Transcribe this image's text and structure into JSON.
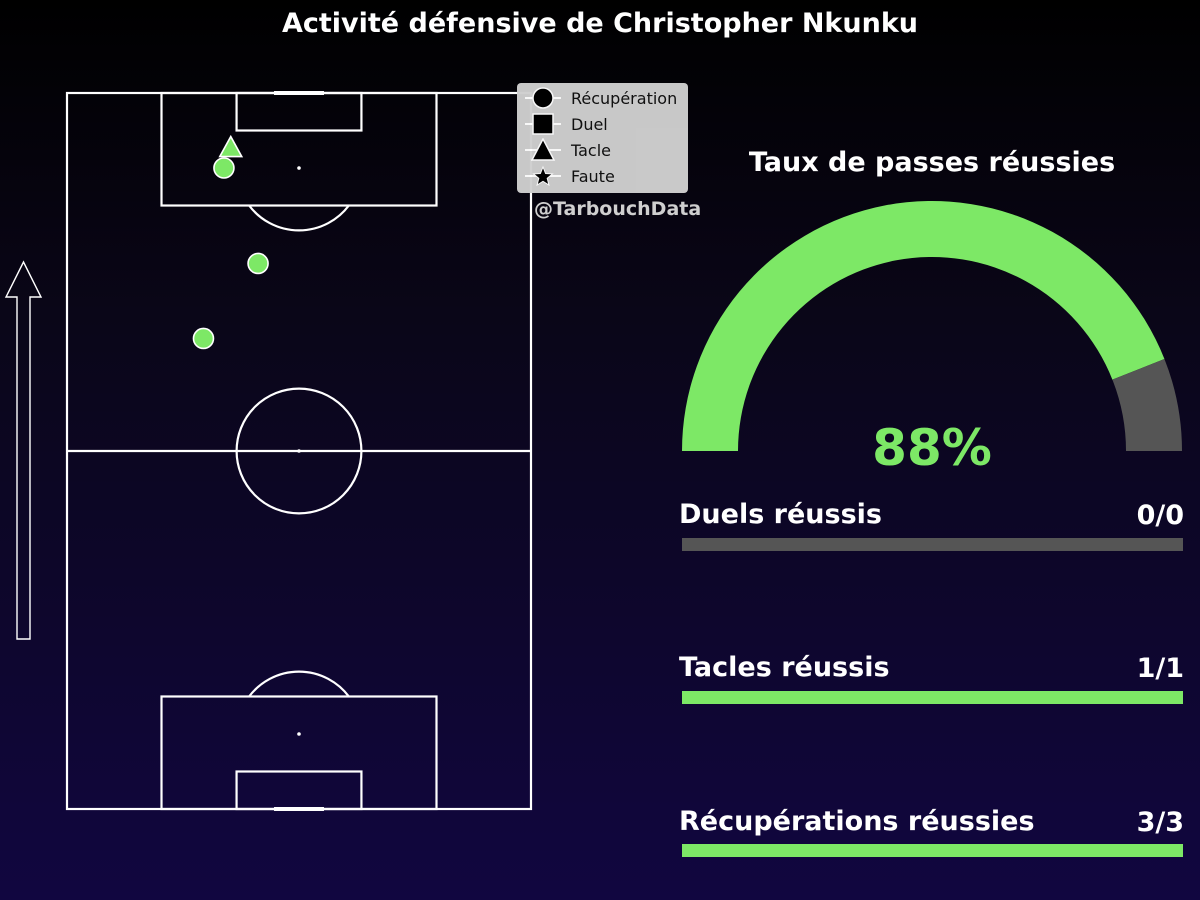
{
  "title": "Activité défensive de Christopher Nkunku",
  "credit": "@TarbouchData",
  "colors": {
    "success": "#7de866",
    "fail": "#555555",
    "line": "#ffffff"
  },
  "legend": [
    {
      "label": "Récupération",
      "marker": "circle"
    },
    {
      "label": "Duel",
      "marker": "square"
    },
    {
      "label": "Tacle",
      "marker": "triangle"
    },
    {
      "label": "Faute",
      "marker": "star"
    }
  ],
  "gauge": {
    "title": "Taux de passes réussies",
    "value_label": "88%",
    "value": 0.88
  },
  "stats": [
    {
      "label": "Duels réussis",
      "value_label": "0/0",
      "ratio": 0
    },
    {
      "label": "Tacles réussis",
      "value_label": "1/1",
      "ratio": 1
    },
    {
      "label": "Récupérations réussies",
      "value_label": "3/3",
      "ratio": 1
    }
  ],
  "chart_data": {
    "type": "scatter",
    "title": "Activité défensive de Christopher Nkunku",
    "pitch": {
      "length": 105,
      "width": 68,
      "attack_direction": "up"
    },
    "events": [
      {
        "type": "Tacle",
        "success": true,
        "x": 97,
        "y": 24
      },
      {
        "type": "Récupération",
        "success": true,
        "x": 94,
        "y": 23
      },
      {
        "type": "Récupération",
        "success": true,
        "x": 80,
        "y": 28
      },
      {
        "type": "Récupération",
        "success": true,
        "x": 69,
        "y": 20
      }
    ]
  }
}
